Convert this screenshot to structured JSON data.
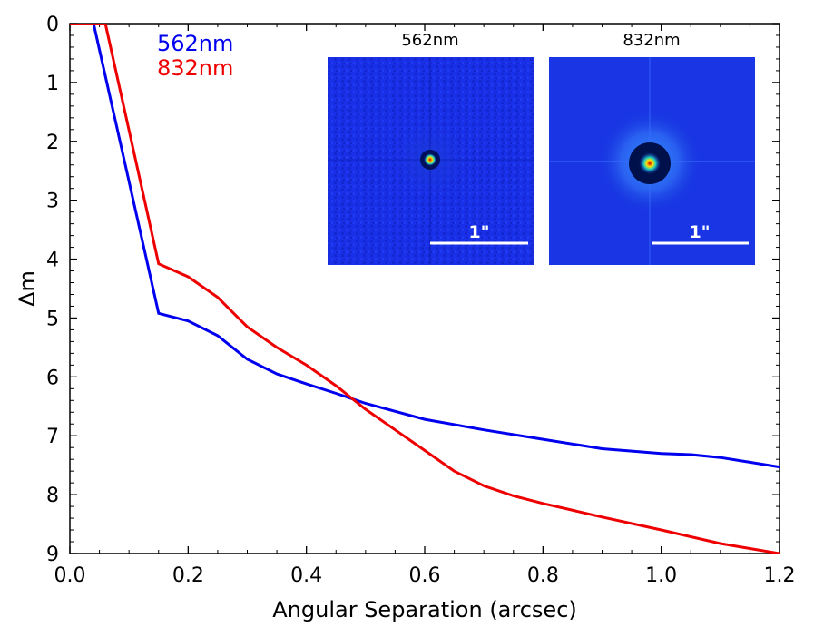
{
  "chart_data": {
    "type": "line",
    "xlabel": "Angular Separation (arcsec)",
    "ylabel": "Δm",
    "xlim": [
      0.0,
      1.2
    ],
    "ylim": [
      9,
      0
    ],
    "y_inverted": true,
    "x_ticks": [
      0.0,
      0.2,
      0.4,
      0.6,
      0.8,
      1.0,
      1.2
    ],
    "x_tick_labels": [
      "0.0",
      "0.2",
      "0.4",
      "0.6",
      "0.8",
      "1.0",
      "1.2"
    ],
    "y_ticks": [
      0,
      1,
      2,
      3,
      4,
      5,
      6,
      7,
      8,
      9
    ],
    "y_tick_labels": [
      "0",
      "1",
      "2",
      "3",
      "4",
      "5",
      "6",
      "7",
      "8",
      "9"
    ],
    "legend_position": "top-left",
    "series": [
      {
        "name": "562nm",
        "color": "#0000ee",
        "x": [
          0.04,
          0.15,
          0.2,
          0.25,
          0.3,
          0.35,
          0.4,
          0.45,
          0.5,
          0.6,
          0.7,
          0.8,
          0.9,
          1.0,
          1.05,
          1.1,
          1.15,
          1.2
        ],
        "y": [
          0.0,
          4.92,
          5.05,
          5.3,
          5.7,
          5.95,
          6.12,
          6.28,
          6.45,
          6.72,
          6.9,
          7.06,
          7.22,
          7.3,
          7.32,
          7.37,
          7.45,
          7.53
        ]
      },
      {
        "name": "832nm",
        "color": "#ee0000",
        "x": [
          0.06,
          0.15,
          0.2,
          0.25,
          0.3,
          0.35,
          0.4,
          0.45,
          0.5,
          0.55,
          0.6,
          0.65,
          0.7,
          0.75,
          0.8,
          0.9,
          1.0,
          1.1,
          1.2
        ],
        "y": [
          0.0,
          4.08,
          4.3,
          4.65,
          5.15,
          5.5,
          5.8,
          6.15,
          6.55,
          6.9,
          7.25,
          7.6,
          7.85,
          8.02,
          8.15,
          8.38,
          8.6,
          8.83,
          9.0
        ]
      }
    ],
    "insets": [
      {
        "title": "562nm",
        "scale_bar_label": "1\""
      },
      {
        "title": "832nm",
        "scale_bar_label": "1\""
      }
    ]
  }
}
